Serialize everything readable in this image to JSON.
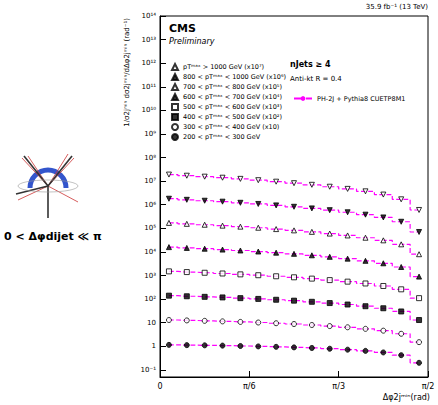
{
  "chart_data": {
    "type": "scatter",
    "title": "CMS",
    "subtitle": "Preliminary",
    "annotations": [
      "nJets ≥ 4",
      "Anti-kt R = 0.4",
      "35.9 fb⁻¹ (13 TeV)"
    ],
    "side_label": "0 < Δφdijet ≪ π",
    "x_label": "Δφ2jᵐⁱⁿ(rad)",
    "y_label": "1/σ2jᵐⁱⁿ dσ2jᵐⁱⁿ/dΔφ2jᵐⁱⁿ (rad⁻¹)",
    "log": "y",
    "grid": false,
    "legend": "upper left",
    "x": [
      0.0524,
      0.1571,
      0.2618,
      0.3665,
      0.4712,
      0.576,
      0.6807,
      0.7854,
      0.8901,
      0.9948,
      1.0996,
      1.2043,
      1.309,
      1.4137,
      1.5184
    ],
    "xlim": [
      0,
      1.5707963268
    ],
    "xticks": [
      0,
      {
        "value": 0.5235987756,
        "label": "π/6"
      },
      {
        "value": 1.0471975512,
        "label": "π/3"
      },
      {
        "value": 1.5707963268,
        "label": "π/2"
      }
    ],
    "ylim": [
      0.05,
      100000000000000.0
    ],
    "yticks": [
      {
        "value": 0.1,
        "label": "10⁻¹"
      },
      1,
      10,
      {
        "value": 100,
        "label": "10²"
      },
      {
        "value": 1000,
        "label": "10³"
      },
      {
        "value": 10000,
        "label": "10⁴"
      },
      {
        "value": 100000,
        "label": "10⁵"
      },
      {
        "value": 1000000,
        "label": "10⁶"
      },
      {
        "value": 10000000,
        "label": "10⁷"
      },
      {
        "value": 100000000,
        "label": "10⁸"
      },
      {
        "value": 1000000000,
        "label": "10⁹"
      },
      {
        "value": 10000000000,
        "label": "10¹⁰"
      },
      {
        "value": 100000000000,
        "label": "10¹¹"
      },
      {
        "value": 1000000000000,
        "label": "10¹²"
      },
      {
        "value": 10000000000000,
        "label": "10¹³"
      },
      {
        "value": 100000000000000,
        "label": "10¹⁴"
      }
    ],
    "series": [
      {
        "name": "pTᵐᵃˣ > 1000 GeV (x10⁷)",
        "color": "#000000",
        "marker": "triangle-down-open",
        "values": [
          19000000,
          17000000,
          15500000,
          14000000,
          12500000,
          11000000,
          9500000,
          8200000,
          7000000,
          5800000,
          4700000,
          3700000,
          2700000,
          1700000,
          600000
        ]
      },
      {
        "name": "800 < pTᵐᵃˣ < 1000 GeV (x10⁶)",
        "color": "#000000",
        "marker": "triangle-down",
        "values": [
          1800000,
          1620000,
          1480000,
          1350000,
          1210000,
          1080000,
          940000,
          820000,
          700000,
          590000,
          480000,
          380000,
          290000,
          190000,
          70000
        ]
      },
      {
        "name": "700 < pTᵐᵃˣ < 800 GeV (x10⁵)",
        "color": "#000000",
        "marker": "triangle-up-open",
        "values": [
          170000,
          155000,
          142000,
          130000,
          118000,
          106000,
          93000,
          82000,
          71000,
          60000,
          50000,
          40000,
          31000,
          21000,
          8000
        ]
      },
      {
        "name": "600 < pTᵐᵃˣ < 700 GeV (x10⁴)",
        "color": "#000000",
        "marker": "triangle-up",
        "values": [
          16000,
          14800,
          13700,
          12600,
          11500,
          10400,
          9300,
          8300,
          7200,
          6200,
          5200,
          4200,
          3300,
          2300,
          900
        ]
      },
      {
        "name": "500 < pTᵐᵃˣ < 600 GeV (x10³)",
        "color": "#000000",
        "marker": "square-open",
        "values": [
          1500,
          1400,
          1310,
          1220,
          1120,
          1030,
          930,
          840,
          740,
          640,
          550,
          460,
          360,
          260,
          110
        ]
      },
      {
        "name": "400 < pTᵐᵃˣ < 500 GeV (x10²)",
        "color": "#000000",
        "marker": "square",
        "values": [
          140,
          132,
          125,
          118,
          110,
          102,
          94,
          86,
          77,
          68,
          59,
          50,
          41,
          30,
          13
        ]
      },
      {
        "name": "300 < pTᵐᵃˣ < 400 GeV (x10)",
        "color": "#000000",
        "marker": "circle-open",
        "values": [
          13,
          12.5,
          12,
          11.4,
          10.8,
          10.2,
          9.5,
          8.8,
          8,
          7.2,
          6.4,
          5.5,
          4.6,
          3.4,
          1.5
        ]
      },
      {
        "name": "200 < pTᵐᵃˣ < 300 GeV",
        "color": "#000000",
        "marker": "circle",
        "values": [
          1.15,
          1.12,
          1.1,
          1.07,
          1.03,
          0.99,
          0.95,
          0.9,
          0.85,
          0.79,
          0.72,
          0.64,
          0.55,
          0.42,
          0.2
        ]
      }
    ],
    "prediction": {
      "name": "PH-2J + Pythia8 CUETP8M1",
      "type": "line",
      "color": "#ff00ff",
      "line_style": "dashed",
      "series": [
        [
          19000000,
          17000000,
          15500000,
          14000000,
          12500000,
          11000000,
          9500000,
          8200000,
          7000000,
          5800000,
          4700000,
          3700000,
          2700000,
          1700000,
          600000
        ],
        [
          1800000,
          1620000,
          1480000,
          1350000,
          1210000,
          1080000,
          940000,
          820000,
          700000,
          590000,
          480000,
          380000,
          290000,
          190000,
          70000
        ],
        [
          170000,
          155000,
          142000,
          130000,
          118000,
          106000,
          93000,
          82000,
          71000,
          60000,
          50000,
          40000,
          31000,
          21000,
          8000
        ],
        [
          16000,
          14800,
          13700,
          12600,
          11500,
          10400,
          9300,
          8300,
          7200,
          6200,
          5200,
          4200,
          3300,
          2300,
          900
        ],
        [
          1500,
          1400,
          1310,
          1220,
          1120,
          1030,
          930,
          840,
          740,
          640,
          550,
          460,
          360,
          260,
          110
        ],
        [
          140,
          132,
          125,
          118,
          110,
          102,
          94,
          86,
          77,
          68,
          59,
          50,
          41,
          30,
          13
        ],
        [
          13,
          12.5,
          12,
          11.4,
          10.8,
          10.2,
          9.5,
          8.8,
          8,
          7.2,
          6.4,
          5.5,
          4.6,
          3.4,
          1.5
        ],
        [
          1.15,
          1.12,
          1.1,
          1.07,
          1.03,
          0.99,
          0.95,
          0.9,
          0.85,
          0.79,
          0.72,
          0.64,
          0.55,
          0.42,
          0.2
        ]
      ]
    }
  }
}
